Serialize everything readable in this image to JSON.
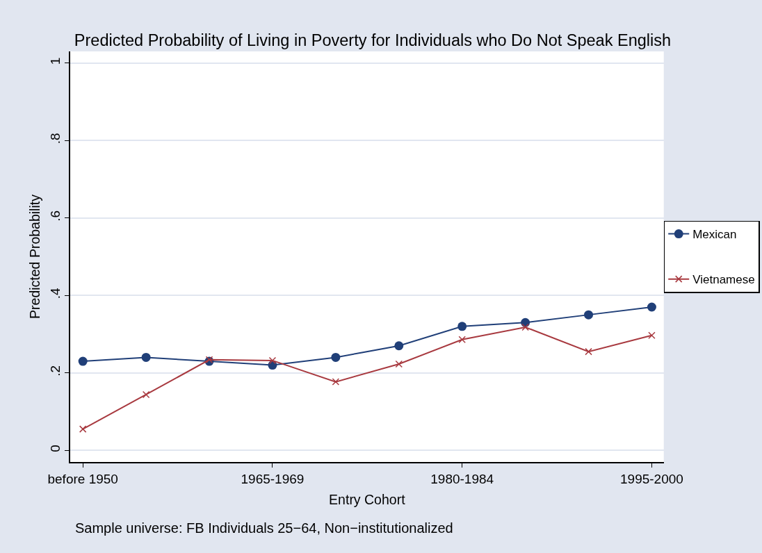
{
  "chart_data": {
    "type": "line",
    "title": "Predicted Probability of Living in Poverty for Individuals who Do Not Speak English",
    "xlabel": "Entry Cohort",
    "ylabel": "Predicted Probability",
    "annotations": [
      "Sample universe: FB Individuals 25−64, Non−institutionalized"
    ],
    "categories": [
      "before 1950",
      null,
      null,
      "1965-1969",
      null,
      null,
      "1980-1984",
      null,
      null,
      "1995-2000"
    ],
    "series": [
      {
        "name": "Mexican",
        "color": "#203f78",
        "marker": "circle",
        "values": [
          0.23,
          0.24,
          0.23,
          0.22,
          0.24,
          0.27,
          0.32,
          0.33,
          0.35,
          0.37
        ]
      },
      {
        "name": "Vietnamese",
        "color": "#a8393f",
        "marker": "cross",
        "values": [
          0.055,
          0.144,
          0.234,
          0.232,
          0.177,
          0.223,
          0.286,
          0.318,
          0.255,
          0.297
        ]
      }
    ],
    "ylim": [
      -0.03,
      1.03
    ],
    "yticks": [
      0,
      {
        "value": 0.2,
        "label": ".2"
      },
      {
        "value": 0.4,
        "label": ".4"
      },
      {
        "value": 0.6,
        "label": ".6"
      },
      {
        "value": 0.8,
        "label": ".8"
      },
      1
    ],
    "grid": "y",
    "legend": "right",
    "line_style": "solid"
  }
}
